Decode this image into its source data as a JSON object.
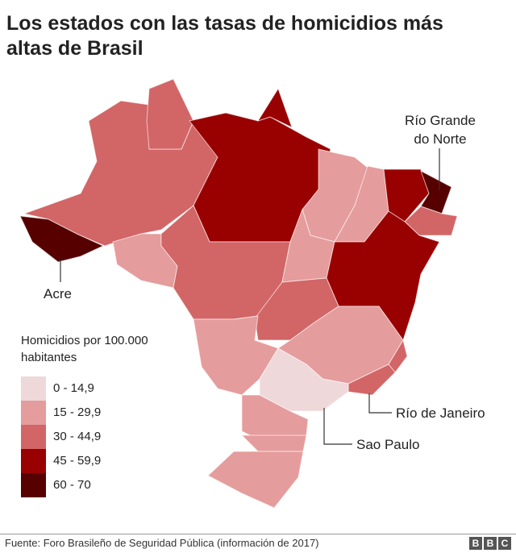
{
  "title": "Los estados con las tasas de homicidios más altas de Brasil",
  "labels": {
    "rn": "Río Grande do Norte",
    "acre": "Acre",
    "rj": "Río de Janeiro",
    "sp": "Sao Paulo"
  },
  "legend": {
    "title": "Homicidios por 100.000 habitantes",
    "items": [
      {
        "label": "0 - 14,9",
        "color": "#efd8da"
      },
      {
        "label": "15 - 29,9",
        "color": "#e59c9c"
      },
      {
        "label": "30 - 44,9",
        "color": "#d26566"
      },
      {
        "label": "45 - 59,9",
        "color": "#990000"
      },
      {
        "label": "60 - 70",
        "color": "#560000"
      }
    ]
  },
  "state_levels": {
    "AM": 2,
    "RR": 2,
    "AC": 4,
    "RO": 1,
    "PA": 3,
    "AP": 3,
    "MT": 2,
    "MA": 1,
    "TO": 1,
    "PI": 1,
    "CE": 3,
    "RN": 4,
    "PE": 2,
    "BA": 3,
    "GO": 2,
    "MG": 1,
    "ES": 2,
    "RJ": 2,
    "MS": 1,
    "SP": 0,
    "PR": 1,
    "SC": 1,
    "RS": 1
  },
  "footer": {
    "source": "Fuente: Foro Brasileño de Seguridad Pública (información de 2017)",
    "logo": [
      "B",
      "B",
      "C"
    ]
  }
}
